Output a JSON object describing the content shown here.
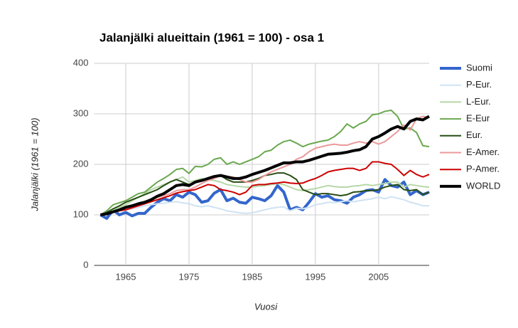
{
  "chart_data": {
    "type": "line",
    "title": "Jalanjälki alueittain (1961 = 100) - osa 1",
    "x_label": "Vuosi",
    "y_label": "Jalanjälki (1961 = 100)",
    "x": [
      1961,
      1962,
      1963,
      1964,
      1965,
      1966,
      1967,
      1968,
      1969,
      1970,
      1971,
      1972,
      1973,
      1974,
      1975,
      1976,
      1977,
      1978,
      1979,
      1980,
      1981,
      1982,
      1983,
      1984,
      1985,
      1986,
      1987,
      1988,
      1989,
      1990,
      1991,
      1992,
      1993,
      1994,
      1995,
      1996,
      1997,
      1998,
      1999,
      2000,
      2001,
      2002,
      2003,
      2004,
      2005,
      2006,
      2007,
      2008,
      2009,
      2010,
      2011,
      2012,
      2013
    ],
    "xlim": [
      1960,
      2013
    ],
    "xticks": [
      1965,
      1975,
      1985,
      1995,
      2005
    ],
    "ylim": [
      0,
      400
    ],
    "yticks": [
      0,
      100,
      200,
      300,
      400
    ],
    "grid": true,
    "legend": "right",
    "series": [
      {
        "name": "Suomi",
        "color": "#3366cc",
        "width": 4,
        "values": [
          100,
          93,
          110,
          100,
          105,
          98,
          103,
          103,
          115,
          125,
          132,
          128,
          140,
          135,
          145,
          140,
          125,
          128,
          143,
          150,
          128,
          133,
          125,
          123,
          135,
          132,
          128,
          138,
          158,
          145,
          110,
          115,
          110,
          125,
          142,
          135,
          138,
          130,
          128,
          123,
          135,
          140,
          148,
          150,
          145,
          170,
          158,
          155,
          165,
          140,
          148,
          140,
          145
        ]
      },
      {
        "name": "P-Eur.",
        "color": "#cfe2f3",
        "width": 2,
        "values": [
          100,
          102,
          105,
          108,
          110,
          112,
          115,
          118,
          120,
          122,
          123,
          125,
          126,
          124,
          122,
          118,
          116,
          118,
          115,
          112,
          108,
          106,
          104,
          103,
          104,
          107,
          110,
          113,
          115,
          116,
          108,
          113,
          112,
          115,
          120,
          122,
          125,
          124,
          126,
          128,
          126,
          128,
          130,
          132,
          135,
          132,
          136,
          133,
          130,
          125,
          122,
          118,
          118
        ]
      },
      {
        "name": "L-Eur.",
        "color": "#b6d7a8",
        "width": 2,
        "values": [
          100,
          105,
          110,
          115,
          120,
          128,
          135,
          142,
          150,
          155,
          160,
          165,
          170,
          175,
          165,
          168,
          172,
          170,
          168,
          165,
          160,
          158,
          156,
          155,
          155,
          157,
          158,
          160,
          162,
          160,
          155,
          150,
          148,
          150,
          152,
          155,
          158,
          156,
          155,
          155,
          157,
          158,
          160,
          158,
          160,
          162,
          165,
          165,
          155,
          160,
          158,
          156,
          155
        ]
      },
      {
        "name": "E-Eur",
        "color": "#6aa84f",
        "width": 2,
        "values": [
          100,
          108,
          120,
          124,
          128,
          135,
          142,
          145,
          155,
          165,
          172,
          180,
          190,
          192,
          182,
          196,
          195,
          200,
          210,
          213,
          200,
          205,
          200,
          205,
          210,
          215,
          225,
          228,
          238,
          245,
          248,
          242,
          235,
          240,
          243,
          246,
          248,
          255,
          265,
          280,
          272,
          280,
          285,
          298,
          300,
          305,
          307,
          295,
          270,
          272,
          263,
          237,
          235
        ]
      },
      {
        "name": "Eur.",
        "color": "#274e13",
        "width": 2,
        "values": [
          100,
          105,
          112,
          118,
          125,
          130,
          135,
          140,
          145,
          150,
          158,
          165,
          170,
          165,
          160,
          165,
          168,
          172,
          176,
          178,
          170,
          165,
          165,
          165,
          168,
          172,
          178,
          180,
          183,
          183,
          178,
          170,
          150,
          145,
          140,
          142,
          142,
          140,
          138,
          140,
          145,
          146,
          148,
          148,
          150,
          155,
          158,
          160,
          150,
          148,
          150,
          140,
          145
        ]
      },
      {
        "name": "E-Amer.",
        "color": "#ea9999",
        "width": 2,
        "values": [
          100,
          102,
          105,
          108,
          112,
          115,
          118,
          122,
          128,
          135,
          138,
          142,
          148,
          150,
          150,
          155,
          162,
          168,
          172,
          178,
          176,
          175,
          170,
          165,
          165,
          170,
          178,
          185,
          190,
          195,
          200,
          210,
          215,
          225,
          232,
          235,
          238,
          240,
          238,
          238,
          242,
          245,
          242,
          245,
          240,
          245,
          255,
          265,
          278,
          268,
          290,
          295,
          293
        ]
      },
      {
        "name": "P-Amer.",
        "color": "#cc0000",
        "width": 2,
        "values": [
          100,
          103,
          105,
          108,
          110,
          114,
          118,
          122,
          126,
          130,
          134,
          138,
          143,
          146,
          148,
          150,
          155,
          160,
          158,
          150,
          148,
          145,
          140,
          145,
          158,
          160,
          160,
          162,
          163,
          165,
          163,
          162,
          163,
          168,
          172,
          178,
          185,
          188,
          190,
          192,
          192,
          188,
          192,
          205,
          205,
          202,
          200,
          190,
          178,
          188,
          180,
          175,
          180
        ]
      },
      {
        "name": "WORLD",
        "color": "#000000",
        "width": 4,
        "values": [
          100,
          102,
          106,
          110,
          115,
          118,
          122,
          125,
          130,
          137,
          142,
          150,
          158,
          160,
          158,
          165,
          168,
          172,
          176,
          178,
          175,
          172,
          172,
          175,
          180,
          184,
          188,
          193,
          198,
          203,
          203,
          205,
          205,
          208,
          212,
          216,
          220,
          221,
          222,
          224,
          227,
          229,
          235,
          250,
          255,
          262,
          270,
          275,
          270,
          285,
          290,
          288,
          295
        ]
      }
    ]
  }
}
